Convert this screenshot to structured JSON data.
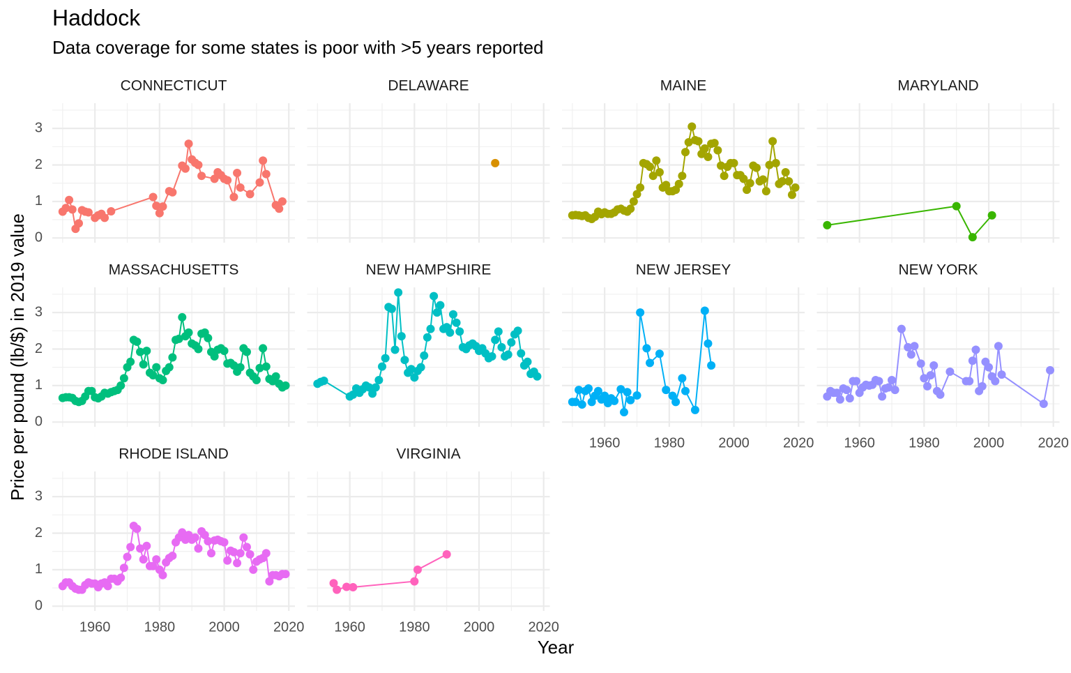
{
  "chart_data": {
    "type": "line",
    "title": "Haddock",
    "subtitle": "Data coverage for some states is poor with >5 years reported",
    "x_label": "Year",
    "y_label": "Price per pound (lb/$) in 2019 value",
    "xlim": [
      1946.8,
      2021.9
    ],
    "ylim": [
      -0.13,
      3.69
    ],
    "xticks": [
      1960,
      1980,
      2000,
      2020
    ],
    "yticks": [
      0,
      1,
      2,
      3
    ],
    "grid": true,
    "series": [
      {
        "name": "CONNECTICUT",
        "color": "#F8766D",
        "x": [
          1950,
          1951,
          1952,
          1953,
          1954,
          1955,
          1956,
          1957,
          1958,
          1960,
          1961,
          1962,
          1963,
          1965,
          1978,
          1979,
          1980,
          1981,
          1983,
          1984,
          1987,
          1988,
          1989,
          1990,
          1991,
          1992,
          1993,
          1997,
          1998,
          1999,
          2000,
          2001,
          2003,
          2004,
          2005,
          2008,
          2011,
          2012,
          2013,
          2016,
          2017,
          2018
        ],
        "values": [
          0.72,
          0.82,
          1.04,
          0.78,
          0.25,
          0.4,
          0.76,
          0.72,
          0.7,
          0.55,
          0.62,
          0.66,
          0.55,
          0.73,
          1.12,
          0.88,
          0.68,
          0.86,
          1.28,
          1.25,
          1.98,
          1.9,
          2.58,
          2.15,
          2.06,
          2.0,
          1.7,
          1.62,
          1.8,
          1.72,
          1.62,
          1.58,
          1.12,
          1.78,
          1.38,
          1.2,
          1.52,
          2.12,
          1.75,
          0.9,
          0.8,
          1.0
        ]
      },
      {
        "name": "DELAWARE",
        "color": "#D89000",
        "x": [
          2005
        ],
        "values": [
          2.05
        ]
      },
      {
        "name": "MAINE",
        "color": "#A3A500",
        "x": [
          1950,
          1951,
          1952,
          1953,
          1954,
          1955,
          1956,
          1957,
          1958,
          1959,
          1960,
          1961,
          1962,
          1963,
          1964,
          1965,
          1966,
          1967,
          1968,
          1969,
          1970,
          1971,
          1972,
          1973,
          1974,
          1975,
          1976,
          1977,
          1978,
          1979,
          1980,
          1981,
          1982,
          1983,
          1984,
          1985,
          1986,
          1987,
          1988,
          1989,
          1990,
          1991,
          1992,
          1993,
          1994,
          1995,
          1996,
          1997,
          1998,
          1999,
          2000,
          2001,
          2002,
          2003,
          2004,
          2005,
          2006,
          2007,
          2008,
          2009,
          2010,
          2011,
          2012,
          2013,
          2014,
          2015,
          2016,
          2017,
          2018,
          2019
        ],
        "values": [
          0.62,
          0.63,
          0.62,
          0.6,
          0.62,
          0.55,
          0.52,
          0.58,
          0.72,
          0.65,
          0.7,
          0.66,
          0.66,
          0.7,
          0.78,
          0.8,
          0.75,
          0.72,
          0.8,
          1.0,
          1.2,
          1.38,
          2.05,
          2.02,
          1.95,
          1.7,
          2.12,
          1.8,
          1.38,
          1.45,
          1.28,
          1.28,
          1.32,
          1.48,
          1.7,
          2.35,
          2.62,
          3.05,
          2.68,
          2.65,
          2.3,
          2.45,
          2.22,
          2.58,
          2.6,
          2.4,
          1.98,
          1.7,
          1.95,
          2.05,
          2.05,
          1.72,
          1.72,
          1.62,
          1.32,
          1.5,
          1.98,
          1.92,
          1.55,
          1.6,
          1.28,
          2.0,
          2.65,
          2.05,
          1.48,
          1.55,
          1.8,
          1.55,
          1.18,
          1.38
        ]
      },
      {
        "name": "MARYLAND",
        "color": "#39B600",
        "x": [
          1950,
          1990,
          1995,
          2001
        ],
        "values": [
          0.35,
          0.87,
          0.02,
          0.62
        ]
      },
      {
        "name": "MASSACHUSETTS",
        "color": "#00BF7D",
        "x": [
          1950,
          1951,
          1952,
          1953,
          1954,
          1955,
          1956,
          1957,
          1958,
          1959,
          1960,
          1961,
          1962,
          1963,
          1964,
          1965,
          1966,
          1967,
          1968,
          1969,
          1970,
          1971,
          1972,
          1973,
          1974,
          1975,
          1976,
          1977,
          1978,
          1979,
          1980,
          1981,
          1982,
          1983,
          1984,
          1985,
          1986,
          1987,
          1988,
          1989,
          1990,
          1991,
          1992,
          1993,
          1994,
          1995,
          1996,
          1997,
          1998,
          1999,
          2000,
          2001,
          2002,
          2003,
          2004,
          2005,
          2006,
          2007,
          2008,
          2009,
          2010,
          2011,
          2012,
          2013,
          2014,
          2015,
          2016,
          2017,
          2018,
          2019
        ],
        "values": [
          0.66,
          0.68,
          0.68,
          0.66,
          0.58,
          0.55,
          0.58,
          0.7,
          0.85,
          0.85,
          0.68,
          0.65,
          0.7,
          0.8,
          0.78,
          0.82,
          0.85,
          0.88,
          1.0,
          1.2,
          1.5,
          1.65,
          2.25,
          2.2,
          1.92,
          1.58,
          1.95,
          1.35,
          1.28,
          1.5,
          1.2,
          1.15,
          1.4,
          1.5,
          1.77,
          2.25,
          2.28,
          2.87,
          2.35,
          2.45,
          2.15,
          2.1,
          2.0,
          2.42,
          2.45,
          2.3,
          1.92,
          1.8,
          1.98,
          2.02,
          1.95,
          1.6,
          1.62,
          1.55,
          1.38,
          1.5,
          2.02,
          1.92,
          1.35,
          1.25,
          1.15,
          1.48,
          2.02,
          1.52,
          1.18,
          1.12,
          1.25,
          1.05,
          0.95,
          1.0
        ]
      },
      {
        "name": "NEW HAMPSHIRE",
        "color": "#00BFC4",
        "x": [
          1950,
          1951,
          1952,
          1960,
          1961,
          1962,
          1963,
          1964,
          1965,
          1966,
          1967,
          1968,
          1969,
          1970,
          1971,
          1972,
          1973,
          1974,
          1975,
          1976,
          1977,
          1978,
          1979,
          1980,
          1981,
          1982,
          1983,
          1984,
          1985,
          1986,
          1987,
          1988,
          1989,
          1990,
          1991,
          1992,
          1993,
          1994,
          1995,
          1996,
          1997,
          1998,
          1999,
          2000,
          2001,
          2002,
          2003,
          2004,
          2005,
          2006,
          2007,
          2008,
          2009,
          2010,
          2011,
          2012,
          2013,
          2014,
          2015,
          2016,
          2017,
          2018
        ],
        "values": [
          1.05,
          1.1,
          1.13,
          0.7,
          0.75,
          0.92,
          0.8,
          0.9,
          1.0,
          0.95,
          0.78,
          0.95,
          1.15,
          1.52,
          1.75,
          3.15,
          3.1,
          1.98,
          3.55,
          2.35,
          1.7,
          1.35,
          1.45,
          1.22,
          1.4,
          1.5,
          1.82,
          2.32,
          2.55,
          3.45,
          3.0,
          3.2,
          2.55,
          2.6,
          2.45,
          2.95,
          2.72,
          2.48,
          2.05,
          2.0,
          2.1,
          2.15,
          2.08,
          1.95,
          2.02,
          1.88,
          1.75,
          1.8,
          2.25,
          2.48,
          2.05,
          1.8,
          1.85,
          2.18,
          2.4,
          2.5,
          1.88,
          1.55,
          1.65,
          1.32,
          1.38,
          1.25
        ]
      },
      {
        "name": "NEW JERSEY",
        "color": "#00B0F6",
        "x": [
          1950,
          1951,
          1952,
          1953,
          1954,
          1955,
          1956,
          1957,
          1958,
          1959,
          1960,
          1961,
          1962,
          1963,
          1965,
          1966,
          1967,
          1968,
          1970,
          1971,
          1973,
          1974,
          1977,
          1979,
          1981,
          1982,
          1984,
          1985,
          1988,
          1991,
          1992,
          1993
        ],
        "values": [
          0.55,
          0.55,
          0.88,
          0.48,
          0.85,
          0.92,
          0.55,
          0.72,
          0.85,
          0.62,
          0.72,
          0.52,
          0.65,
          0.58,
          0.9,
          0.27,
          0.82,
          0.6,
          0.73,
          3.0,
          2.02,
          1.62,
          1.87,
          0.88,
          0.72,
          0.55,
          1.2,
          0.85,
          0.33,
          3.05,
          2.15,
          1.55
        ]
      },
      {
        "name": "NEW YORK",
        "color": "#9590FF",
        "x": [
          1950,
          1951,
          1952,
          1953,
          1954,
          1955,
          1956,
          1957,
          1958,
          1959,
          1960,
          1961,
          1962,
          1963,
          1964,
          1965,
          1966,
          1967,
          1968,
          1969,
          1970,
          1971,
          1973,
          1975,
          1976,
          1977,
          1979,
          1980,
          1981,
          1982,
          1983,
          1984,
          1985,
          1988,
          1993,
          1994,
          1995,
          1996,
          1997,
          1998,
          1999,
          2000,
          2001,
          2002,
          2003,
          2004,
          2017,
          2019
        ],
        "values": [
          0.7,
          0.85,
          0.8,
          0.8,
          0.62,
          0.92,
          0.88,
          0.65,
          1.12,
          1.12,
          0.8,
          0.95,
          1.02,
          1.0,
          1.02,
          1.15,
          1.12,
          0.7,
          0.92,
          0.95,
          1.15,
          0.88,
          2.55,
          2.05,
          1.85,
          2.08,
          1.6,
          1.2,
          0.98,
          1.28,
          1.55,
          0.85,
          0.75,
          1.38,
          1.12,
          1.12,
          1.68,
          1.98,
          0.85,
          0.98,
          1.65,
          1.5,
          1.25,
          1.12,
          2.08,
          1.3,
          0.5,
          1.42
        ]
      },
      {
        "name": "RHODE ISLAND",
        "color": "#E76BF3",
        "x": [
          1950,
          1951,
          1952,
          1953,
          1954,
          1955,
          1956,
          1957,
          1958,
          1959,
          1960,
          1961,
          1962,
          1963,
          1964,
          1965,
          1966,
          1967,
          1968,
          1969,
          1970,
          1971,
          1972,
          1973,
          1974,
          1975,
          1976,
          1977,
          1978,
          1979,
          1980,
          1981,
          1982,
          1983,
          1984,
          1985,
          1986,
          1987,
          1988,
          1989,
          1990,
          1991,
          1992,
          1993,
          1994,
          1995,
          1996,
          1997,
          1998,
          1999,
          2000,
          2001,
          2002,
          2003,
          2004,
          2005,
          2006,
          2007,
          2008,
          2009,
          2010,
          2011,
          2012,
          2013,
          2014,
          2015,
          2016,
          2017,
          2018,
          2019
        ],
        "values": [
          0.55,
          0.65,
          0.65,
          0.55,
          0.48,
          0.45,
          0.45,
          0.58,
          0.65,
          0.62,
          0.62,
          0.52,
          0.62,
          0.65,
          0.55,
          0.75,
          0.75,
          0.68,
          0.78,
          1.05,
          1.35,
          1.62,
          2.2,
          2.12,
          1.58,
          1.28,
          1.65,
          1.1,
          1.1,
          1.28,
          1.0,
          0.85,
          1.2,
          1.32,
          1.38,
          1.75,
          1.88,
          2.02,
          1.82,
          1.95,
          1.82,
          1.88,
          1.58,
          2.05,
          1.95,
          1.78,
          1.45,
          1.8,
          1.82,
          1.78,
          1.75,
          1.25,
          1.52,
          1.48,
          1.18,
          1.45,
          1.88,
          1.62,
          1.42,
          1.0,
          1.22,
          1.28,
          1.32,
          1.45,
          0.68,
          0.85,
          0.85,
          0.82,
          0.88,
          0.88
        ]
      },
      {
        "name": "VIRGINIA",
        "color": "#FF62BC",
        "x": [
          1955,
          1956,
          1959,
          1961,
          1980,
          1981,
          1990
        ],
        "values": [
          0.63,
          0.45,
          0.53,
          0.52,
          0.68,
          1.0,
          1.42
        ]
      }
    ]
  }
}
